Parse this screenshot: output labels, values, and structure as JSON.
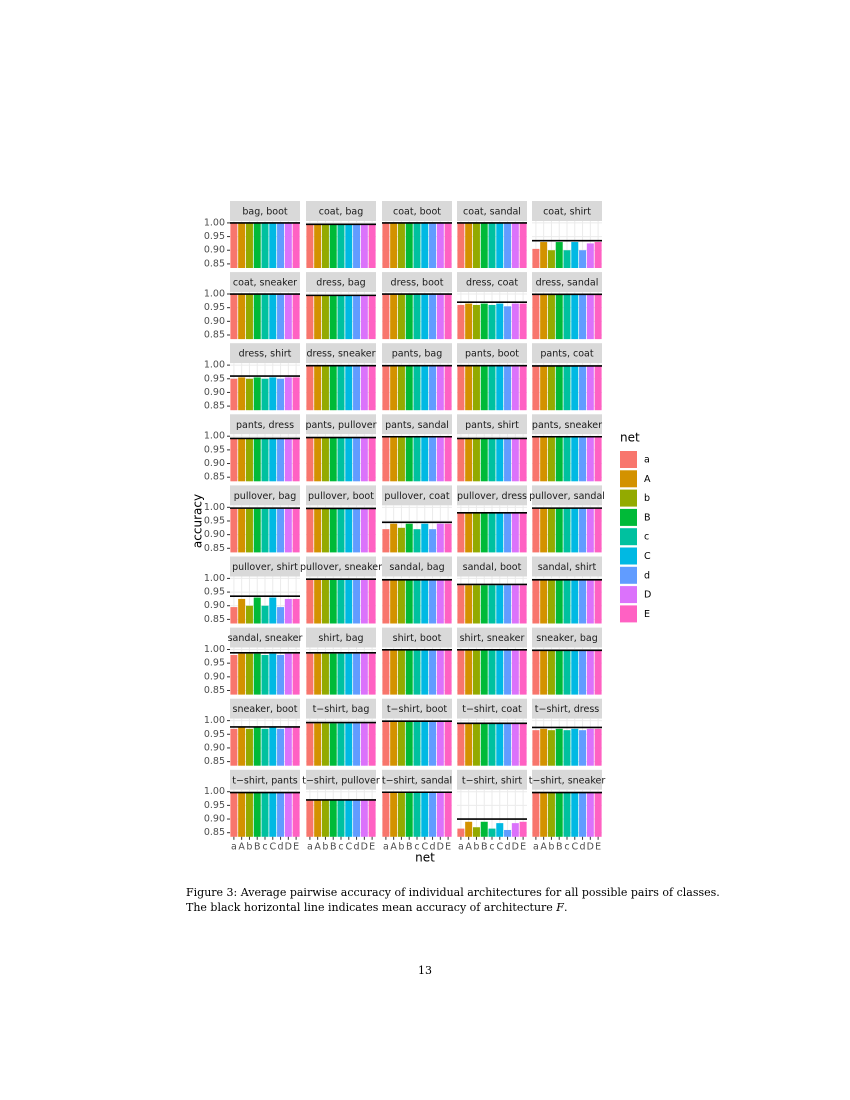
{
  "chart_data": {
    "type": "bar",
    "categories": [
      "a",
      "A",
      "b",
      "B",
      "c",
      "C",
      "d",
      "D",
      "E"
    ],
    "colors": [
      "#F8766D",
      "#D39200",
      "#93AA00",
      "#00BA38",
      "#00C19F",
      "#00B9E3",
      "#619CFF",
      "#DB72FB",
      "#FF61C3"
    ],
    "ylim": [
      0.835,
      1.007
    ],
    "yticks": [
      0.85,
      {
        "value": 0.9,
        "label": "0.90"
      },
      0.95,
      {
        "value": 1,
        "label": "1.00"
      }
    ],
    "y_label": "accuracy",
    "x_label": "net",
    "legend_title": "net",
    "grid": true,
    "facets": [
      {
        "title": "bag, boot",
        "values": [
          0.999,
          0.999,
          0.999,
          0.999,
          0.999,
          0.999,
          0.999,
          0.999,
          0.999
        ],
        "reference": 1.0
      },
      {
        "title": "coat, bag",
        "values": [
          0.995,
          0.995,
          0.995,
          0.995,
          0.995,
          0.995,
          0.995,
          0.995,
          0.995
        ],
        "reference": 0.995
      },
      {
        "title": "coat, boot",
        "values": [
          0.999,
          0.999,
          0.999,
          0.999,
          0.999,
          0.999,
          0.999,
          0.999,
          0.999
        ],
        "reference": 1.0
      },
      {
        "title": "coat, sandal",
        "values": [
          0.999,
          0.999,
          0.999,
          0.999,
          0.999,
          0.999,
          0.999,
          0.999,
          0.999
        ],
        "reference": 1.0
      },
      {
        "title": "coat, shirt",
        "values": [
          0.905,
          0.93,
          0.9,
          0.93,
          0.9,
          0.93,
          0.9,
          0.925,
          0.93
        ],
        "reference": 0.935
      },
      {
        "title": "coat, sneaker",
        "values": [
          0.999,
          0.999,
          0.999,
          0.999,
          0.999,
          0.999,
          0.999,
          0.999,
          0.999
        ],
        "reference": 1.0
      },
      {
        "title": "dress, bag",
        "values": [
          0.993,
          0.993,
          0.993,
          0.993,
          0.993,
          0.993,
          0.993,
          0.993,
          0.993
        ],
        "reference": 0.995
      },
      {
        "title": "dress, boot",
        "values": [
          0.999,
          0.999,
          0.999,
          0.999,
          0.999,
          0.999,
          0.999,
          0.999,
          0.999
        ],
        "reference": 1.0
      },
      {
        "title": "dress, coat",
        "values": [
          0.96,
          0.965,
          0.96,
          0.965,
          0.96,
          0.965,
          0.955,
          0.965,
          0.965
        ],
        "reference": 0.97
      },
      {
        "title": "dress, sandal",
        "values": [
          0.998,
          0.998,
          0.998,
          0.998,
          0.998,
          0.998,
          0.998,
          0.998,
          0.998
        ],
        "reference": 0.999
      },
      {
        "title": "dress, shirt",
        "values": [
          0.95,
          0.955,
          0.95,
          0.955,
          0.95,
          0.955,
          0.95,
          0.955,
          0.955
        ],
        "reference": 0.96
      },
      {
        "title": "dress, sneaker",
        "values": [
          0.998,
          0.998,
          0.998,
          0.998,
          0.998,
          0.998,
          0.998,
          0.998,
          0.998
        ],
        "reference": 0.998
      },
      {
        "title": "pants, bag",
        "values": [
          0.998,
          0.998,
          0.998,
          0.998,
          0.998,
          0.998,
          0.998,
          0.998,
          0.998
        ],
        "reference": 0.998
      },
      {
        "title": "pants, boot",
        "values": [
          0.998,
          0.998,
          0.998,
          0.998,
          0.998,
          0.998,
          0.998,
          0.998,
          0.998
        ],
        "reference": 0.998
      },
      {
        "title": "pants, coat",
        "values": [
          0.997,
          0.997,
          0.997,
          0.997,
          0.997,
          0.997,
          0.997,
          0.997,
          0.997
        ],
        "reference": 0.997
      },
      {
        "title": "pants, dress",
        "values": [
          0.99,
          0.99,
          0.99,
          0.99,
          0.99,
          0.99,
          0.99,
          0.99,
          0.99
        ],
        "reference": 0.992
      },
      {
        "title": "pants, pullover",
        "values": [
          0.995,
          0.995,
          0.995,
          0.995,
          0.995,
          0.995,
          0.995,
          0.995,
          0.995
        ],
        "reference": 0.995
      },
      {
        "title": "pants, sandal",
        "values": [
          0.998,
          0.998,
          0.998,
          0.998,
          0.998,
          0.998,
          0.998,
          0.998,
          0.998
        ],
        "reference": 0.998
      },
      {
        "title": "pants, shirt",
        "values": [
          0.992,
          0.992,
          0.992,
          0.992,
          0.992,
          0.992,
          0.992,
          0.992,
          0.992
        ],
        "reference": 0.992
      },
      {
        "title": "pants, sneaker",
        "values": [
          0.998,
          0.998,
          0.998,
          0.998,
          0.998,
          0.998,
          0.998,
          0.998,
          0.998
        ],
        "reference": 0.998
      },
      {
        "title": "pullover, bag",
        "values": [
          0.995,
          0.995,
          0.995,
          0.995,
          0.995,
          0.995,
          0.995,
          0.995,
          0.995
        ],
        "reference": 0.997
      },
      {
        "title": "pullover, boot",
        "values": [
          0.996,
          0.996,
          0.996,
          0.996,
          0.996,
          0.996,
          0.996,
          0.996,
          0.996
        ],
        "reference": 0.996
      },
      {
        "title": "pullover, coat",
        "values": [
          0.92,
          0.94,
          0.925,
          0.94,
          0.92,
          0.94,
          0.92,
          0.94,
          0.94
        ],
        "reference": 0.945
      },
      {
        "title": "pullover, dress",
        "values": [
          0.98,
          0.98,
          0.98,
          0.98,
          0.98,
          0.98,
          0.98,
          0.98,
          0.98
        ],
        "reference": 0.98
      },
      {
        "title": "pullover, sandal",
        "values": [
          0.997,
          0.997,
          0.997,
          0.997,
          0.997,
          0.997,
          0.997,
          0.997,
          0.997
        ],
        "reference": 0.997
      },
      {
        "title": "pullover, shirt",
        "values": [
          0.895,
          0.925,
          0.9,
          0.93,
          0.9,
          0.93,
          0.895,
          0.925,
          0.925
        ],
        "reference": 0.935
      },
      {
        "title": "pullover, sneaker",
        "values": [
          0.997,
          0.997,
          0.997,
          0.997,
          0.997,
          0.997,
          0.997,
          0.997,
          0.997
        ],
        "reference": 0.997
      },
      {
        "title": "sandal, bag",
        "values": [
          0.995,
          0.995,
          0.995,
          0.995,
          0.995,
          0.995,
          0.995,
          0.995,
          0.995
        ],
        "reference": 0.995
      },
      {
        "title": "sandal, boot",
        "values": [
          0.975,
          0.975,
          0.975,
          0.975,
          0.975,
          0.975,
          0.975,
          0.975,
          0.975
        ],
        "reference": 0.978
      },
      {
        "title": "sandal, shirt",
        "values": [
          0.995,
          0.995,
          0.995,
          0.995,
          0.995,
          0.995,
          0.995,
          0.995,
          0.995
        ],
        "reference": 0.995
      },
      {
        "title": "sandal, sneaker",
        "values": [
          0.98,
          0.985,
          0.985,
          0.985,
          0.98,
          0.985,
          0.98,
          0.985,
          0.985
        ],
        "reference": 0.988
      },
      {
        "title": "shirt, bag",
        "values": [
          0.985,
          0.985,
          0.985,
          0.985,
          0.985,
          0.985,
          0.985,
          0.985,
          0.985
        ],
        "reference": 0.988
      },
      {
        "title": "shirt, boot",
        "values": [
          0.999,
          0.999,
          0.999,
          0.999,
          0.999,
          0.999,
          0.999,
          0.999,
          0.999
        ],
        "reference": 0.999
      },
      {
        "title": "shirt, sneaker",
        "values": [
          0.999,
          0.999,
          0.999,
          0.999,
          0.999,
          0.999,
          0.999,
          0.999,
          0.999
        ],
        "reference": 0.999
      },
      {
        "title": "sneaker, bag",
        "values": [
          0.997,
          0.997,
          0.997,
          0.997,
          0.997,
          0.997,
          0.997,
          0.997,
          0.997
        ],
        "reference": 0.997
      },
      {
        "title": "sneaker, boot",
        "values": [
          0.97,
          0.975,
          0.97,
          0.975,
          0.97,
          0.975,
          0.97,
          0.975,
          0.975
        ],
        "reference": 0.977
      },
      {
        "title": "t−shirt, bag",
        "values": [
          0.99,
          0.99,
          0.99,
          0.99,
          0.99,
          0.99,
          0.99,
          0.99,
          0.99
        ],
        "reference": 0.993
      },
      {
        "title": "t−shirt, boot",
        "values": [
          0.998,
          0.998,
          0.998,
          0.998,
          0.998,
          0.998,
          0.998,
          0.998,
          0.998
        ],
        "reference": 0.998
      },
      {
        "title": "t−shirt, coat",
        "values": [
          0.99,
          0.99,
          0.99,
          0.99,
          0.99,
          0.99,
          0.99,
          0.99,
          0.99
        ],
        "reference": 0.99
      },
      {
        "title": "t−shirt, dress",
        "values": [
          0.965,
          0.97,
          0.965,
          0.97,
          0.965,
          0.97,
          0.965,
          0.97,
          0.97
        ],
        "reference": 0.975
      },
      {
        "title": "t−shirt, pants",
        "values": [
          0.997,
          0.997,
          0.997,
          0.997,
          0.997,
          0.997,
          0.997,
          0.997,
          0.997
        ],
        "reference": 0.997
      },
      {
        "title": "t−shirt, pullover",
        "values": [
          0.97,
          0.97,
          0.97,
          0.97,
          0.97,
          0.97,
          0.97,
          0.97,
          0.97
        ],
        "reference": 0.97
      },
      {
        "title": "t−shirt, sandal",
        "values": [
          0.998,
          0.998,
          0.998,
          0.998,
          0.998,
          0.998,
          0.998,
          0.998,
          0.998
        ],
        "reference": 0.998
      },
      {
        "title": "t−shirt, shirt",
        "values": [
          0.865,
          0.89,
          0.87,
          0.89,
          0.865,
          0.885,
          0.86,
          0.885,
          0.89
        ],
        "reference": 0.9
      },
      {
        "title": "t−shirt, sneaker",
        "values": [
          0.997,
          0.997,
          0.997,
          0.997,
          0.997,
          0.997,
          0.997,
          0.997,
          0.997
        ],
        "reference": 0.997
      }
    ]
  },
  "caption": {
    "line1": "Figure 3: Average pairwise accuracy of individual architectures for all possible pairs of classes.",
    "line2": "The black horizontal line indicates mean accuracy of architecture ",
    "symbol": "F",
    "line2_end": "."
  },
  "page_number": "13"
}
